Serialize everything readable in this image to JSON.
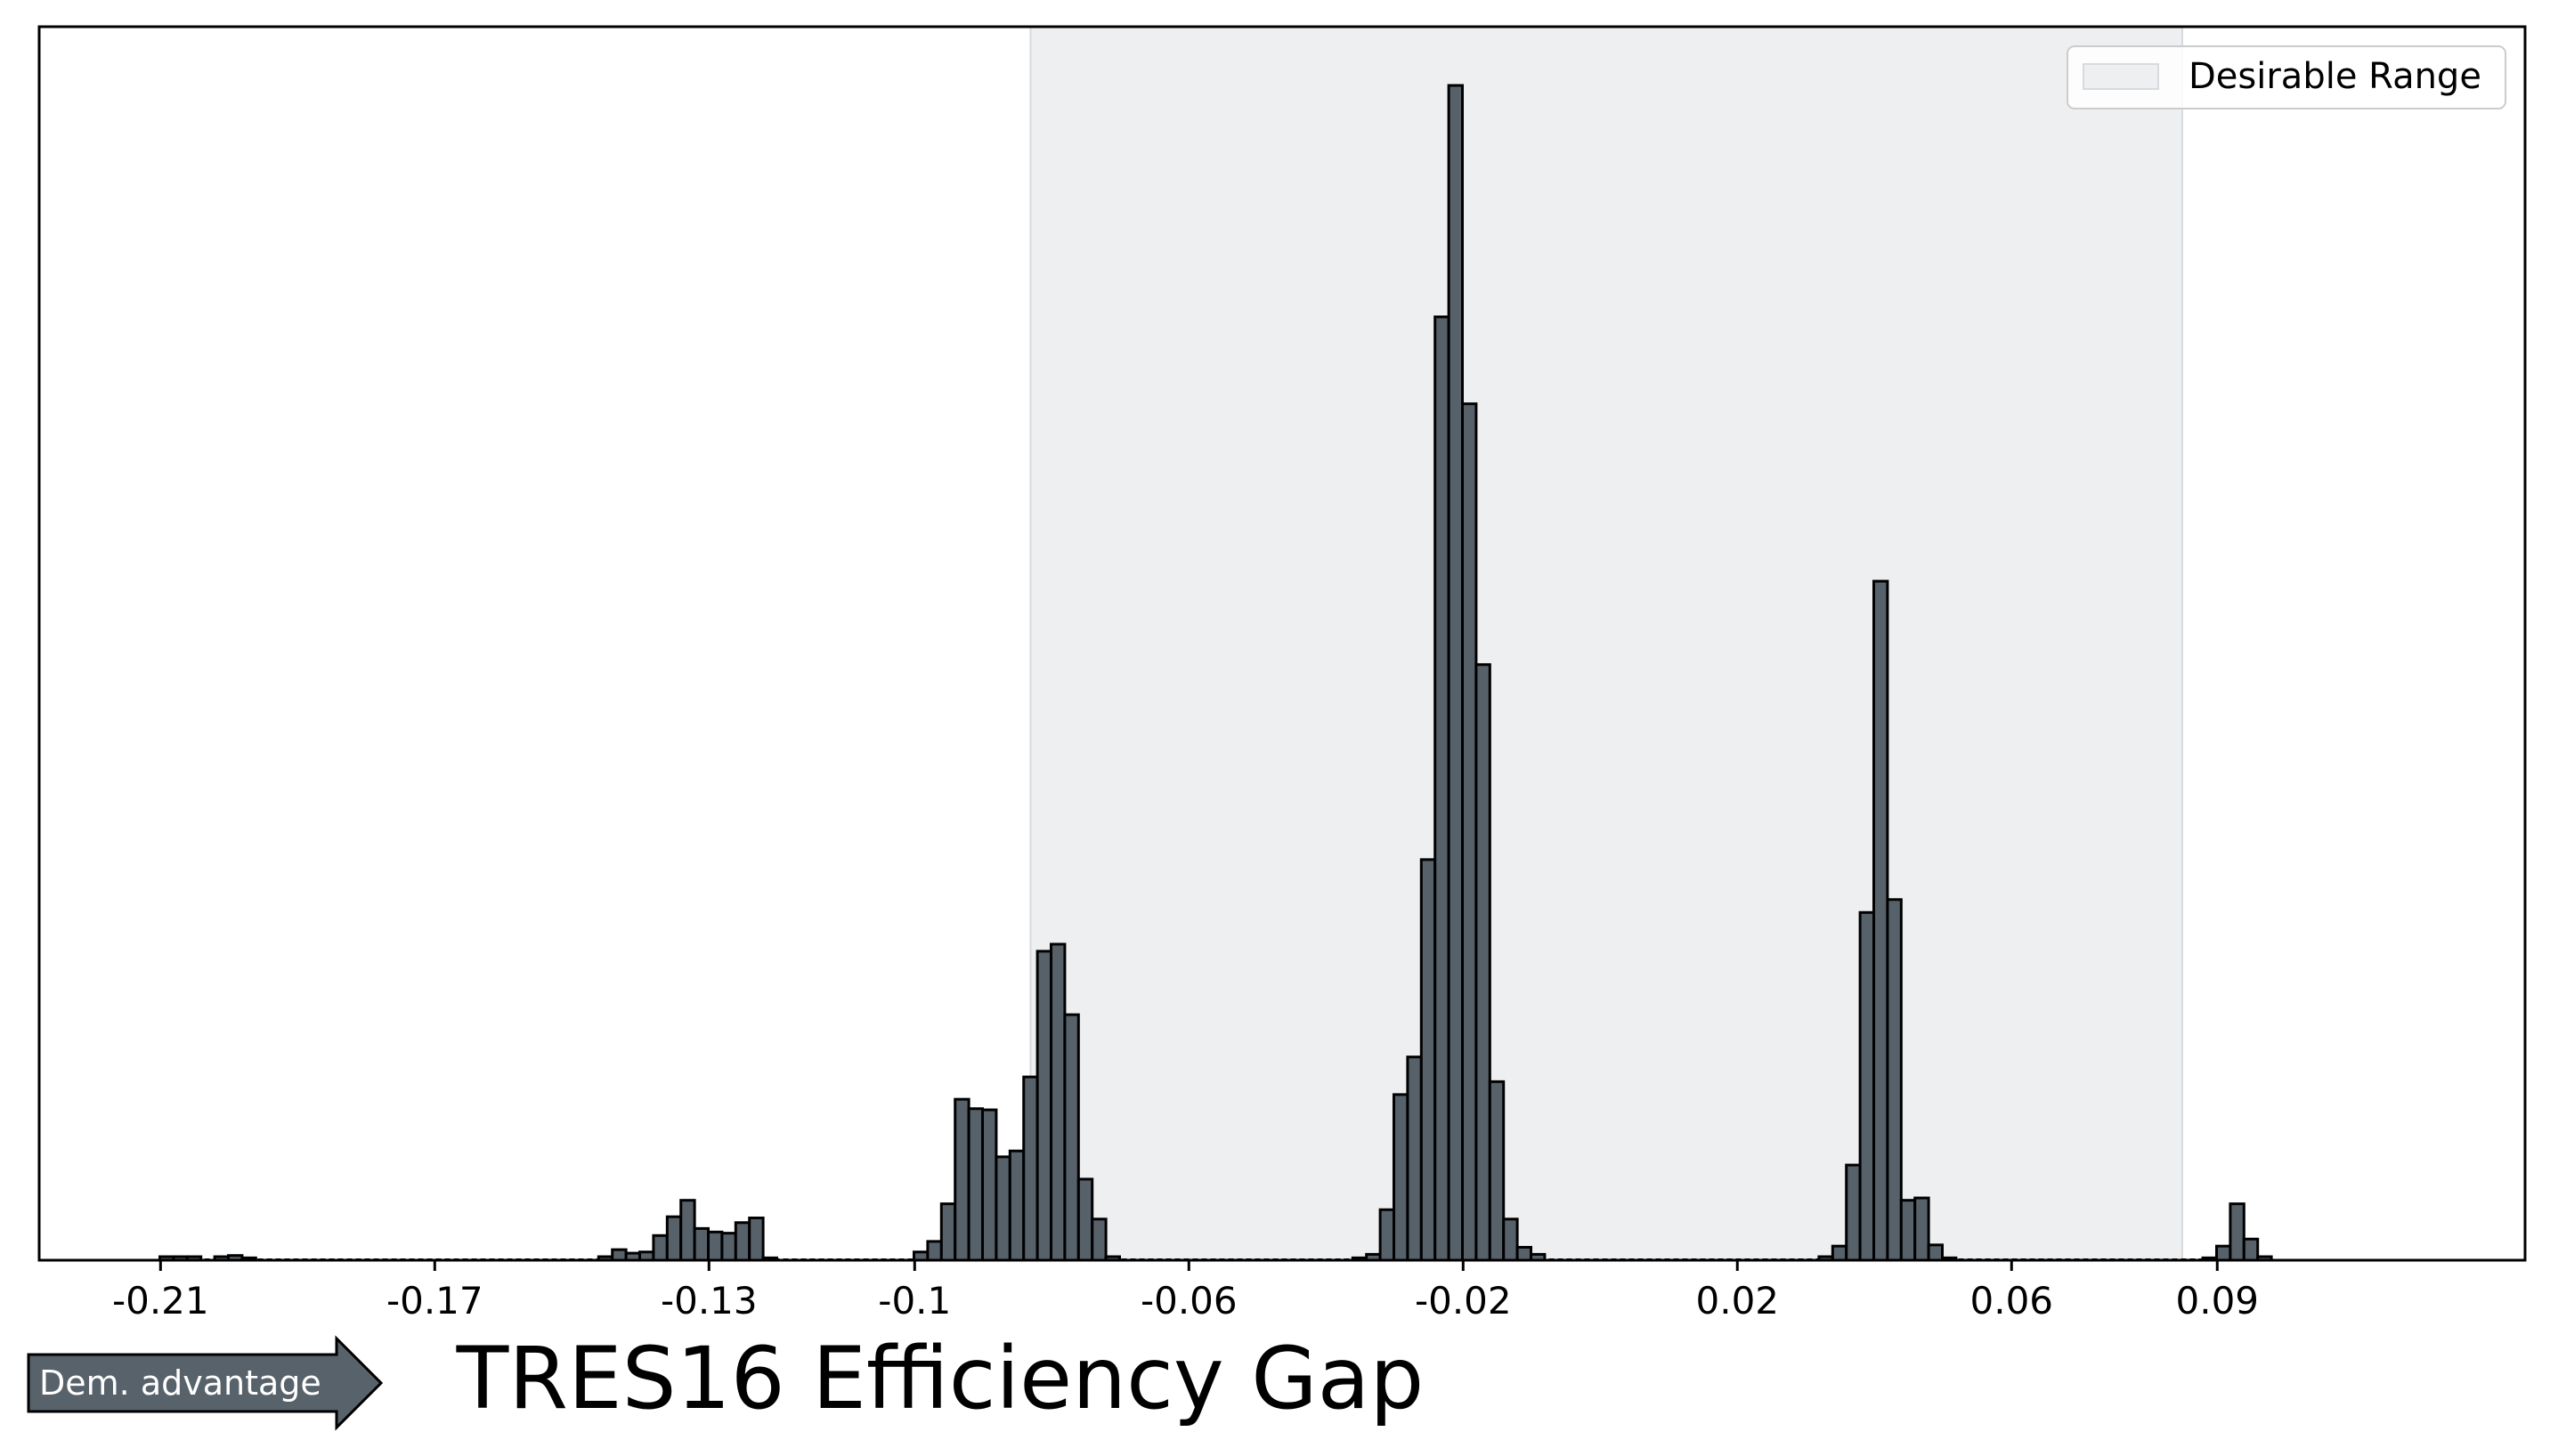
{
  "chart_data": {
    "type": "bar",
    "title": "",
    "xlabel": "TRES16 Efficiency Gap",
    "ylabel": "",
    "xlim": [
      -0.2277,
      0.1349
    ],
    "ylim": [
      0,
      1.05
    ],
    "x_ticks": [
      -0.21,
      -0.17,
      -0.13,
      -0.1,
      -0.06,
      -0.02,
      0.02,
      0.06,
      0.09
    ],
    "x_tick_labels": [
      "-0.21",
      "-0.17",
      "-0.13",
      "-0.1",
      "-0.06",
      "-0.02",
      "0.02",
      "0.06",
      "0.09"
    ],
    "bin_width": 0.002,
    "shaded_range": [
      -0.0831,
      0.0849
    ],
    "legend": {
      "label": "Desirable Range",
      "position": "top-right"
    },
    "annotation": "Dem. advantage",
    "colors": {
      "bar_fill": "#57616a",
      "bar_edge": "#000000",
      "shade": "#eeeff1",
      "arrow_fill": "#58626a"
    },
    "bars": [
      {
        "x": -0.2101,
        "v": 0.003
      },
      {
        "x": -0.2081,
        "v": 0.003
      },
      {
        "x": -0.2061,
        "v": 0.003
      },
      {
        "x": -0.2021,
        "v": 0.003
      },
      {
        "x": -0.2001,
        "v": 0.004
      },
      {
        "x": -0.1981,
        "v": 0.002
      },
      {
        "x": -0.1461,
        "v": 0.003
      },
      {
        "x": -0.1441,
        "v": 0.009
      },
      {
        "x": -0.1421,
        "v": 0.006
      },
      {
        "x": -0.1401,
        "v": 0.007
      },
      {
        "x": -0.1381,
        "v": 0.021
      },
      {
        "x": -0.1361,
        "v": 0.037
      },
      {
        "x": -0.1341,
        "v": 0.051
      },
      {
        "x": -0.1321,
        "v": 0.027
      },
      {
        "x": -0.1301,
        "v": 0.024
      },
      {
        "x": -0.1281,
        "v": 0.023
      },
      {
        "x": -0.1261,
        "v": 0.032
      },
      {
        "x": -0.1241,
        "v": 0.036
      },
      {
        "x": -0.1221,
        "v": 0.002
      },
      {
        "x": -0.1001,
        "v": 0.007
      },
      {
        "x": -0.0981,
        "v": 0.016
      },
      {
        "x": -0.0961,
        "v": 0.048
      },
      {
        "x": -0.0941,
        "v": 0.137
      },
      {
        "x": -0.0921,
        "v": 0.129
      },
      {
        "x": -0.0901,
        "v": 0.128
      },
      {
        "x": -0.0881,
        "v": 0.088
      },
      {
        "x": -0.0861,
        "v": 0.093
      },
      {
        "x": -0.0841,
        "v": 0.156
      },
      {
        "x": -0.0821,
        "v": 0.263
      },
      {
        "x": -0.0801,
        "v": 0.269
      },
      {
        "x": -0.0781,
        "v": 0.209
      },
      {
        "x": -0.0761,
        "v": 0.069
      },
      {
        "x": -0.0741,
        "v": 0.035
      },
      {
        "x": -0.0721,
        "v": 0.003
      },
      {
        "x": -0.0361,
        "v": 0.002
      },
      {
        "x": -0.0341,
        "v": 0.005
      },
      {
        "x": -0.0321,
        "v": 0.043
      },
      {
        "x": -0.0301,
        "v": 0.141
      },
      {
        "x": -0.0281,
        "v": 0.173
      },
      {
        "x": -0.0261,
        "v": 0.341
      },
      {
        "x": -0.0241,
        "v": 0.803
      },
      {
        "x": -0.0221,
        "v": 1.0
      },
      {
        "x": -0.0201,
        "v": 0.729
      },
      {
        "x": -0.0181,
        "v": 0.507
      },
      {
        "x": -0.0161,
        "v": 0.152
      },
      {
        "x": -0.0141,
        "v": 0.035
      },
      {
        "x": -0.0121,
        "v": 0.011
      },
      {
        "x": -0.0101,
        "v": 0.005
      },
      {
        "x": 0.0319,
        "v": 0.003
      },
      {
        "x": 0.0339,
        "v": 0.012
      },
      {
        "x": 0.0359,
        "v": 0.081
      },
      {
        "x": 0.0379,
        "v": 0.296
      },
      {
        "x": 0.0399,
        "v": 0.578
      },
      {
        "x": 0.0419,
        "v": 0.307
      },
      {
        "x": 0.0439,
        "v": 0.051
      },
      {
        "x": 0.0459,
        "v": 0.053
      },
      {
        "x": 0.0479,
        "v": 0.013
      },
      {
        "x": 0.0499,
        "v": 0.002
      },
      {
        "x": 0.0879,
        "v": 0.002
      },
      {
        "x": 0.0899,
        "v": 0.012
      },
      {
        "x": 0.0919,
        "v": 0.048
      },
      {
        "x": 0.0939,
        "v": 0.018
      },
      {
        "x": 0.0959,
        "v": 0.003
      }
    ]
  }
}
